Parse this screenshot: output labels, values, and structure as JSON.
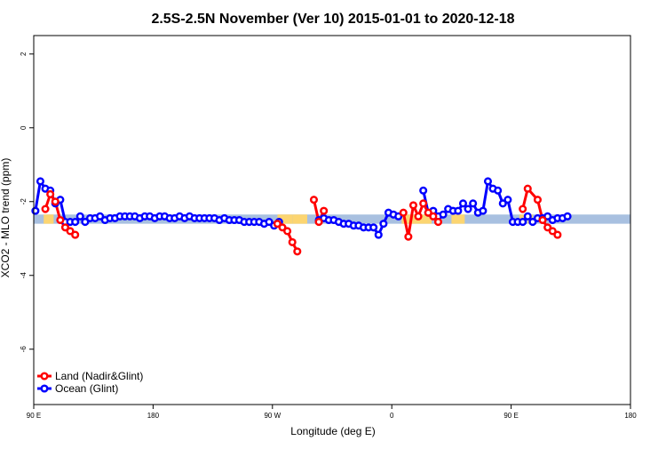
{
  "chart_data": {
    "type": "line",
    "title": "2.5S-2.5N November (Ver 10)   2015-01-01 to 2020-12-18",
    "xlabel": "Longitude (deg E)",
    "ylabel": "XCO2 - MLO trend (ppm)",
    "xlim": [
      90,
      810
    ],
    "ylim": [
      -7.5,
      2.5
    ],
    "x_ticks": [
      {
        "value": 90,
        "label": "90 E"
      },
      {
        "value": 234,
        "label": "180"
      },
      {
        "value": 378,
        "label": "90 W"
      },
      {
        "value": 522,
        "label": "0"
      },
      {
        "value": 666,
        "label": "90 E"
      },
      {
        "value": 810,
        "label": "180"
      }
    ],
    "y_ticks": [
      {
        "value": 2,
        "label": "2"
      },
      {
        "value": 0,
        "label": "0"
      },
      {
        "value": -2,
        "label": "-2"
      },
      {
        "value": -4,
        "label": "-4"
      },
      {
        "value": -6,
        "label": "-6"
      }
    ],
    "band": {
      "y_low": -2.6,
      "y_high": -2.35,
      "ocean_color": "#a8c0e0",
      "land_color": "#fcd571",
      "land_ranges": [
        [
          102,
          114
        ],
        [
          384,
          402
        ],
        [
          402,
          420
        ],
        [
          534,
          570
        ],
        [
          594,
          610
        ],
        [
          676,
          682
        ],
        [
          686,
          692
        ]
      ]
    },
    "legend": {
      "position": "bottom-left",
      "entries": [
        {
          "label": "Land (Nadir&Glint)",
          "color": "#ff0000"
        },
        {
          "label": "Ocean (Glint)",
          "color": "#0000ff"
        }
      ]
    },
    "series": [
      {
        "name": "Land (Nadir&Glint)",
        "color": "#ff0000",
        "segments": [
          [
            [
              104,
              -2.2
            ],
            [
              110,
              -1.8
            ],
            [
              116,
              -2.0
            ],
            [
              122,
              -2.5
            ],
            [
              128,
              -2.7
            ],
            [
              134,
              -2.8
            ],
            [
              140,
              -2.9
            ]
          ],
          [
            [
              384,
              -2.6
            ],
            [
              390,
              -2.7
            ],
            [
              396,
              -2.8
            ],
            [
              402,
              -3.1
            ],
            [
              408,
              -3.35
            ]
          ],
          [
            [
              428,
              -1.95
            ],
            [
              434,
              -2.55
            ],
            [
              440,
              -2.25
            ]
          ],
          [
            [
              536,
              -2.3
            ],
            [
              542,
              -2.95
            ],
            [
              548,
              -2.1
            ],
            [
              554,
              -2.4
            ],
            [
              560,
              -2.05
            ],
            [
              566,
              -2.3
            ],
            [
              572,
              -2.4
            ],
            [
              578,
              -2.55
            ]
          ],
          [
            [
              680,
              -2.2
            ],
            [
              686,
              -1.65
            ],
            [
              698,
              -1.95
            ],
            [
              704,
              -2.5
            ],
            [
              710,
              -2.7
            ],
            [
              716,
              -2.8
            ],
            [
              722,
              -2.9
            ]
          ]
        ]
      },
      {
        "name": "Ocean (Glint)",
        "color": "#0000ff",
        "segments": [
          [
            [
              92,
              -2.25
            ],
            [
              98,
              -1.45
            ],
            [
              104,
              -1.65
            ],
            [
              110,
              -1.7
            ],
            [
              116,
              -2.05
            ],
            [
              122,
              -1.95
            ],
            [
              128,
              -2.55
            ],
            [
              134,
              -2.55
            ],
            [
              140,
              -2.55
            ],
            [
              146,
              -2.4
            ],
            [
              152,
              -2.55
            ],
            [
              158,
              -2.45
            ],
            [
              164,
              -2.45
            ],
            [
              170,
              -2.4
            ],
            [
              176,
              -2.5
            ],
            [
              182,
              -2.45
            ],
            [
              188,
              -2.45
            ],
            [
              194,
              -2.4
            ],
            [
              200,
              -2.4
            ],
            [
              206,
              -2.4
            ],
            [
              212,
              -2.4
            ],
            [
              218,
              -2.45
            ],
            [
              224,
              -2.4
            ],
            [
              230,
              -2.4
            ],
            [
              236,
              -2.45
            ],
            [
              242,
              -2.4
            ],
            [
              248,
              -2.4
            ],
            [
              254,
              -2.45
            ],
            [
              260,
              -2.45
            ],
            [
              266,
              -2.4
            ],
            [
              272,
              -2.45
            ],
            [
              278,
              -2.4
            ],
            [
              284,
              -2.45
            ],
            [
              290,
              -2.45
            ],
            [
              296,
              -2.45
            ],
            [
              302,
              -2.45
            ],
            [
              308,
              -2.45
            ],
            [
              314,
              -2.5
            ],
            [
              320,
              -2.45
            ],
            [
              326,
              -2.5
            ],
            [
              332,
              -2.5
            ],
            [
              338,
              -2.5
            ],
            [
              344,
              -2.55
            ],
            [
              350,
              -2.55
            ],
            [
              356,
              -2.55
            ],
            [
              362,
              -2.55
            ],
            [
              368,
              -2.6
            ],
            [
              374,
              -2.55
            ],
            [
              380,
              -2.65
            ],
            [
              386,
              -2.55
            ]
          ],
          [
            [
              434,
              -2.5
            ],
            [
              440,
              -2.45
            ],
            [
              446,
              -2.5
            ],
            [
              452,
              -2.5
            ],
            [
              458,
              -2.55
            ],
            [
              464,
              -2.6
            ],
            [
              470,
              -2.6
            ],
            [
              476,
              -2.65
            ],
            [
              482,
              -2.65
            ],
            [
              488,
              -2.7
            ],
            [
              494,
              -2.7
            ],
            [
              500,
              -2.7
            ],
            [
              506,
              -2.9
            ],
            [
              512,
              -2.6
            ],
            [
              518,
              -2.3
            ],
            [
              524,
              -2.35
            ],
            [
              530,
              -2.4
            ]
          ],
          [
            [
              560,
              -1.7
            ],
            [
              566,
              -2.3
            ],
            [
              572,
              -2.25
            ],
            [
              578,
              -2.4
            ],
            [
              584,
              -2.35
            ],
            [
              590,
              -2.2
            ],
            [
              596,
              -2.25
            ],
            [
              602,
              -2.25
            ],
            [
              608,
              -2.05
            ],
            [
              614,
              -2.2
            ],
            [
              620,
              -2.05
            ],
            [
              626,
              -2.3
            ],
            [
              632,
              -2.25
            ],
            [
              638,
              -1.45
            ],
            [
              644,
              -1.65
            ],
            [
              650,
              -1.7
            ],
            [
              656,
              -2.05
            ],
            [
              662,
              -1.95
            ],
            [
              668,
              -2.55
            ],
            [
              674,
              -2.55
            ],
            [
              680,
              -2.55
            ],
            [
              686,
              -2.4
            ],
            [
              692,
              -2.55
            ],
            [
              698,
              -2.45
            ],
            [
              704,
              -2.45
            ],
            [
              710,
              -2.4
            ],
            [
              716,
              -2.5
            ],
            [
              722,
              -2.45
            ],
            [
              728,
              -2.45
            ],
            [
              734,
              -2.4
            ]
          ]
        ]
      }
    ]
  }
}
